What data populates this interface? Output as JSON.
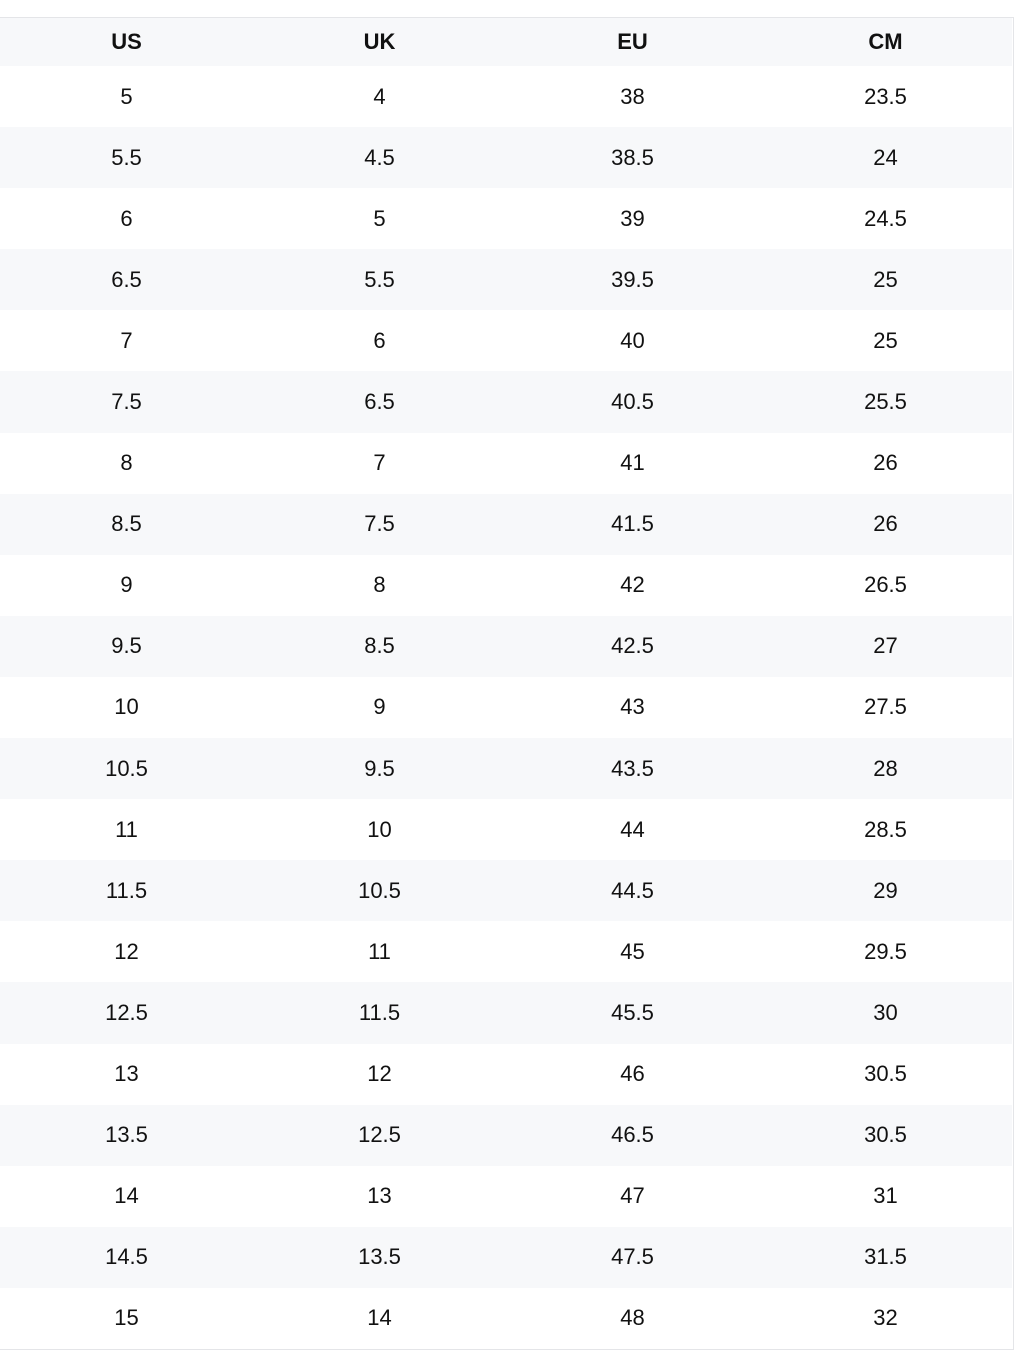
{
  "table": {
    "headers": [
      "US",
      "UK",
      "EU",
      "CM"
    ],
    "rows": [
      [
        "5",
        "4",
        "38",
        "23.5"
      ],
      [
        "5.5",
        "4.5",
        "38.5",
        "24"
      ],
      [
        "6",
        "5",
        "39",
        "24.5"
      ],
      [
        "6.5",
        "5.5",
        "39.5",
        "25"
      ],
      [
        "7",
        "6",
        "40",
        "25"
      ],
      [
        "7.5",
        "6.5",
        "40.5",
        "25.5"
      ],
      [
        "8",
        "7",
        "41",
        "26"
      ],
      [
        "8.5",
        "7.5",
        "41.5",
        "26"
      ],
      [
        "9",
        "8",
        "42",
        "26.5"
      ],
      [
        "9.5",
        "8.5",
        "42.5",
        "27"
      ],
      [
        "10",
        "9",
        "43",
        "27.5"
      ],
      [
        "10.5",
        "9.5",
        "43.5",
        "28"
      ],
      [
        "11",
        "10",
        "44",
        "28.5"
      ],
      [
        "11.5",
        "10.5",
        "44.5",
        "29"
      ],
      [
        "12",
        "11",
        "45",
        "29.5"
      ],
      [
        "12.5",
        "11.5",
        "45.5",
        "30"
      ],
      [
        "13",
        "12",
        "46",
        "30.5"
      ],
      [
        "13.5",
        "12.5",
        "46.5",
        "30.5"
      ],
      [
        "14",
        "13",
        "47",
        "31"
      ],
      [
        "14.5",
        "13.5",
        "47.5",
        "31.5"
      ],
      [
        "15",
        "14",
        "48",
        "32"
      ]
    ]
  }
}
